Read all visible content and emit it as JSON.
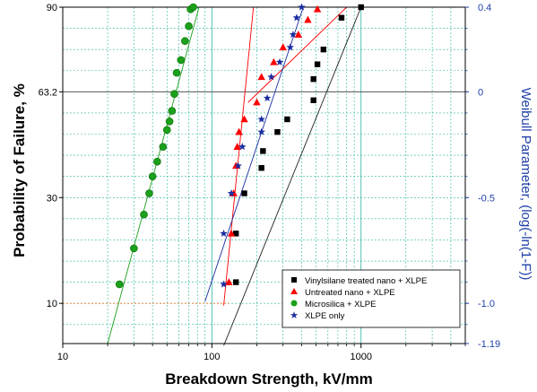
{
  "chart_data": {
    "type": "scatter",
    "title": "",
    "xlabel": "Breakdown Strength, kV/mm",
    "ylabel": "Probability of Failure, %",
    "y2label": "Weibull Parameter, (log(-ln(1-F))",
    "x_scale": "log",
    "xlim": [
      10,
      5000
    ],
    "x_ticks": [
      10,
      100,
      1000
    ],
    "y_weibull_lim": [
      -1.19,
      0.4
    ],
    "y_left_ticks": [
      {
        "label": "90",
        "weibull": 0.4
      },
      {
        "label": "63.2",
        "weibull": 0
      },
      {
        "label": "30",
        "weibull": -0.5
      },
      {
        "label": "10",
        "weibull": -1.0
      }
    ],
    "y_right_ticks": [
      {
        "label": "0.4",
        "weibull": 0.4
      },
      {
        "label": "0",
        "weibull": 0
      },
      {
        "label": "-0.5",
        "weibull": -0.5
      },
      {
        "label": "-1.0",
        "weibull": -1.0
      },
      {
        "label": "-1.19",
        "weibull": -1.19
      }
    ],
    "grid": true,
    "legend_position": "bottom-right",
    "series": [
      {
        "name": "Vinylsilane treated nano + XLPE",
        "marker": "square",
        "color": "#000000",
        "points": [
          [
            145,
            -0.9
          ],
          [
            145,
            -0.67
          ],
          [
            165,
            -0.48
          ],
          [
            215,
            -0.36
          ],
          [
            220,
            -0.28
          ],
          [
            275,
            -0.19
          ],
          [
            320,
            -0.13
          ],
          [
            480,
            -0.04
          ],
          [
            480,
            0.06
          ],
          [
            510,
            0.13
          ],
          [
            560,
            0.2
          ],
          [
            740,
            0.35
          ],
          [
            1000,
            0.4
          ]
        ],
        "fit": [
          [
            120,
            -1.2
          ],
          [
            1000,
            0.4
          ]
        ]
      },
      {
        "name": "Untreated nano + XLPE",
        "marker": "triangle",
        "color": "#ff0000",
        "points": [
          [
            130,
            -0.9
          ],
          [
            135,
            -0.67
          ],
          [
            140,
            -0.48
          ],
          [
            145,
            -0.35
          ],
          [
            148,
            -0.26
          ],
          [
            152,
            -0.19
          ],
          [
            165,
            -0.13
          ],
          [
            200,
            -0.05
          ],
          [
            215,
            0.07
          ],
          [
            260,
            0.14
          ],
          [
            300,
            0.21
          ],
          [
            380,
            0.27
          ],
          [
            440,
            0.34
          ],
          [
            510,
            0.39
          ]
        ],
        "fit": [
          [
            120,
            -1.01
          ],
          [
            190,
            0.4
          ]
        ],
        "fit2": [
          [
            175,
            -0.05
          ],
          [
            800,
            0.4
          ]
        ]
      },
      {
        "name": "Microsilica + XLPE",
        "marker": "circle",
        "color": "#1aa01a",
        "points": [
          [
            24,
            -0.91
          ],
          [
            30,
            -0.74
          ],
          [
            35,
            -0.58
          ],
          [
            38,
            -0.48
          ],
          [
            40,
            -0.4
          ],
          [
            43,
            -0.33
          ],
          [
            47,
            -0.26
          ],
          [
            50,
            -0.18
          ],
          [
            52,
            -0.14
          ],
          [
            54,
            -0.09
          ],
          [
            56,
            -0.01
          ],
          [
            58,
            0.09
          ],
          [
            62,
            0.15
          ],
          [
            66,
            0.24
          ],
          [
            70,
            0.31
          ],
          [
            72,
            0.39
          ],
          [
            75,
            0.4
          ]
        ],
        "fit": [
          [
            20,
            -1.19
          ],
          [
            82,
            0.4
          ]
        ]
      },
      {
        "name": "XLPE only",
        "marker": "star",
        "color": "#1a2ca0",
        "points": [
          [
            120,
            -0.91
          ],
          [
            120,
            -0.67
          ],
          [
            135,
            -0.48
          ],
          [
            150,
            -0.35
          ],
          [
            160,
            -0.26
          ],
          [
            215,
            -0.19
          ],
          [
            215,
            -0.13
          ],
          [
            235,
            -0.03
          ],
          [
            250,
            0.07
          ],
          [
            285,
            0.14
          ],
          [
            335,
            0.21
          ],
          [
            350,
            0.27
          ],
          [
            370,
            0.35
          ],
          [
            400,
            0.4
          ]
        ],
        "fit": [
          [
            90,
            -0.99
          ],
          [
            410,
            0.4
          ]
        ]
      }
    ],
    "reference_line_weibull": -1.0
  }
}
